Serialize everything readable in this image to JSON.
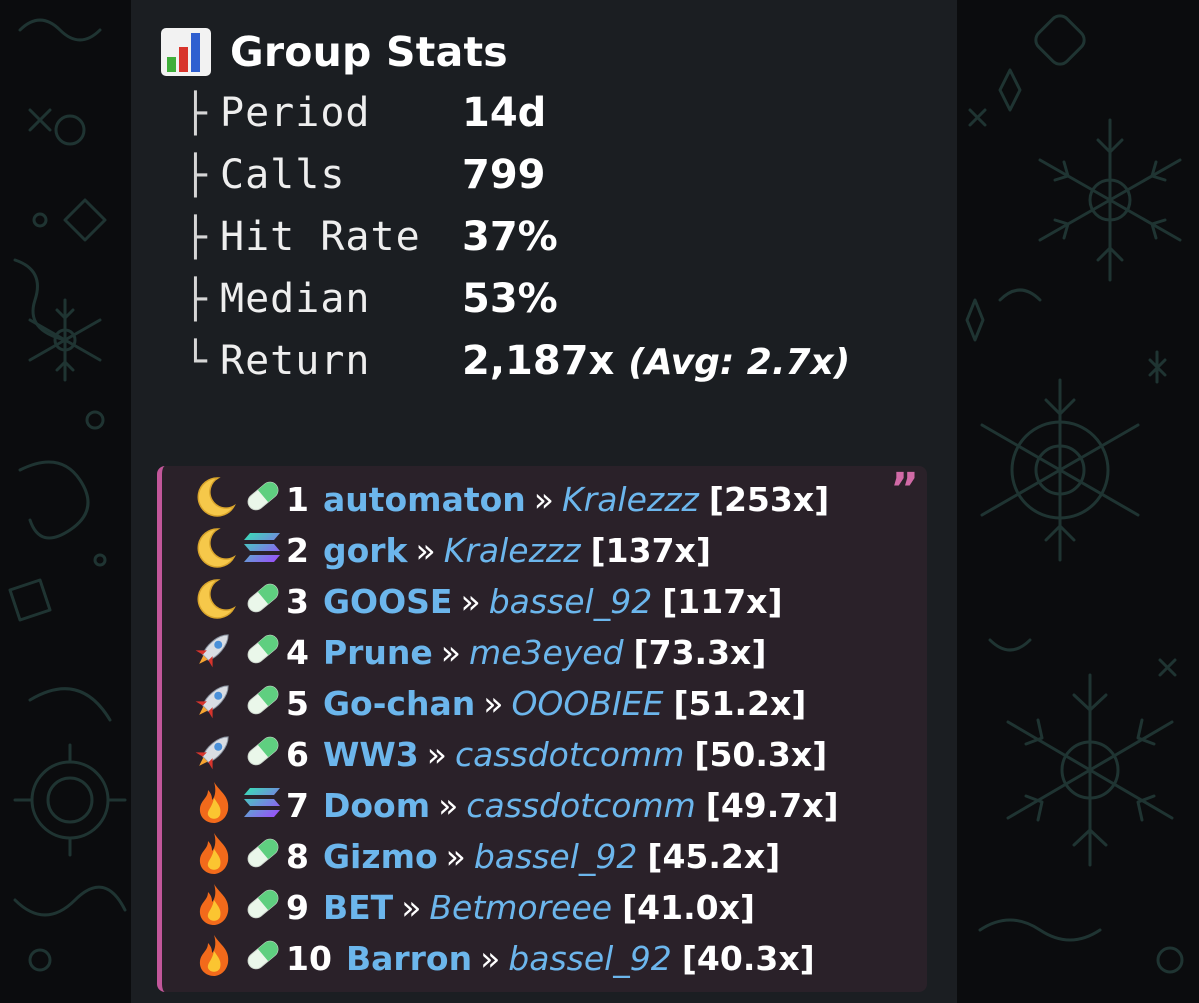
{
  "header": {
    "icon": "bar-chart-emoji-icon",
    "title": "Group Stats"
  },
  "stats": [
    {
      "branch": "├",
      "label": "Period",
      "value": "14d"
    },
    {
      "branch": "├",
      "label": "Calls",
      "value": "799"
    },
    {
      "branch": "├",
      "label": "Hit Rate",
      "value": "37%"
    },
    {
      "branch": "├",
      "label": "Median",
      "value": "53%"
    },
    {
      "branch": "└",
      "label": "Return",
      "value": "2,187x",
      "extra": "(Avg: 2.7x)"
    }
  ],
  "quote": {
    "mark": "”",
    "accent": "#c2579a"
  },
  "leaders": [
    {
      "tier_icon": "crescent-moon-icon",
      "chain_icon": "pill-icon",
      "rank": "1",
      "token": "automaton",
      "sep": "»",
      "caller": "Kralezzz",
      "multiplier": "[253x]"
    },
    {
      "tier_icon": "crescent-moon-icon",
      "chain_icon": "solana-icon",
      "rank": "2",
      "token": "gork",
      "sep": "»",
      "caller": "Kralezzz",
      "multiplier": "[137x]"
    },
    {
      "tier_icon": "crescent-moon-icon",
      "chain_icon": "pill-icon",
      "rank": "3",
      "token": "GOOSE",
      "sep": "»",
      "caller": "bassel_92",
      "multiplier": "[117x]"
    },
    {
      "tier_icon": "rocket-icon",
      "chain_icon": "pill-icon",
      "rank": "4",
      "token": "Prune",
      "sep": "»",
      "caller": "me3eyed",
      "multiplier": "[73.3x]"
    },
    {
      "tier_icon": "rocket-icon",
      "chain_icon": "pill-icon",
      "rank": "5",
      "token": "Go-chan",
      "sep": "»",
      "caller": "OOOBIEE",
      "multiplier": "[51.2x]"
    },
    {
      "tier_icon": "rocket-icon",
      "chain_icon": "pill-icon",
      "rank": "6",
      "token": "WW3",
      "sep": "»",
      "caller": "cassdotcomm",
      "multiplier": "[50.3x]"
    },
    {
      "tier_icon": "fire-icon",
      "chain_icon": "solana-icon",
      "rank": "7",
      "token": "Doom",
      "sep": "»",
      "caller": "cassdotcomm",
      "multiplier": "[49.7x]"
    },
    {
      "tier_icon": "fire-icon",
      "chain_icon": "pill-icon",
      "rank": "8",
      "token": "Gizmo",
      "sep": "»",
      "caller": "bassel_92",
      "multiplier": "[45.2x]"
    },
    {
      "tier_icon": "fire-icon",
      "chain_icon": "pill-icon",
      "rank": "9",
      "token": "BET",
      "sep": "»",
      "caller": "Betmoreee",
      "multiplier": "[41.0x]"
    },
    {
      "tier_icon": "fire-icon",
      "chain_icon": "pill-icon",
      "rank": "10",
      "token": "Barron",
      "sep": "»",
      "caller": "bassel_92",
      "multiplier": "[40.3x]"
    }
  ]
}
